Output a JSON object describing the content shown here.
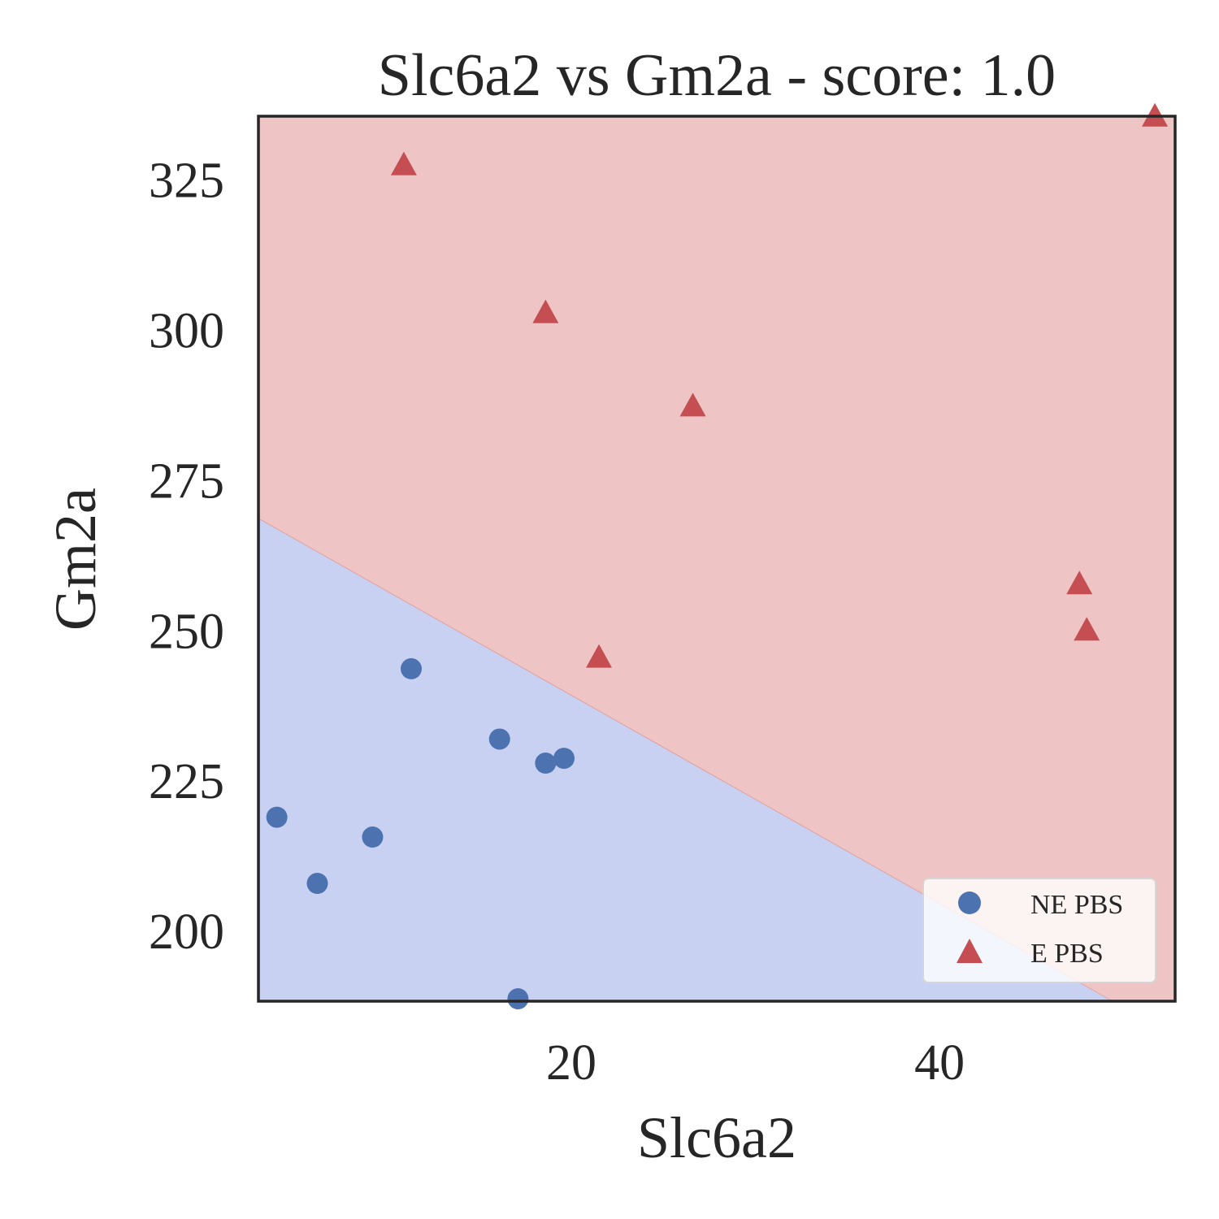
{
  "chart_data": {
    "type": "scatter",
    "title": "Slc6a2 vs Gm2a - score: 1.0",
    "xlabel": "Slc6a2",
    "ylabel": "Gm2a",
    "xlim": [
      3.0,
      52.8
    ],
    "ylim": [
      188.4,
      335.6
    ],
    "xticks": [
      20,
      40
    ],
    "yticks": [
      200,
      225,
      250,
      275,
      300,
      325
    ],
    "grid": false,
    "legend_position": "bottom-right",
    "background_regions": {
      "boundary_line": [
        [
          3.0,
          268.7
        ],
        [
          49.4,
          188.4
        ]
      ],
      "below_color": "#c9d1f2",
      "above_color": "#eec4c4"
    },
    "series": [
      {
        "name": "NE PBS",
        "marker": "circle",
        "color": "#4c72b0",
        "points": [
          [
            4.0,
            219.0
          ],
          [
            6.2,
            208.0
          ],
          [
            9.2,
            215.7
          ],
          [
            11.3,
            243.7
          ],
          [
            16.1,
            232.0
          ],
          [
            17.1,
            188.8
          ],
          [
            18.6,
            228.0
          ],
          [
            19.6,
            228.8
          ]
        ]
      },
      {
        "name": "E PBS",
        "marker": "triangle",
        "color": "#c44e52",
        "points": [
          [
            10.9,
            327.4
          ],
          [
            18.6,
            302.8
          ],
          [
            26.6,
            287.3
          ],
          [
            21.5,
            245.5
          ],
          [
            47.6,
            257.7
          ],
          [
            48.0,
            250.0
          ],
          [
            51.7,
            335.5
          ]
        ]
      }
    ]
  }
}
